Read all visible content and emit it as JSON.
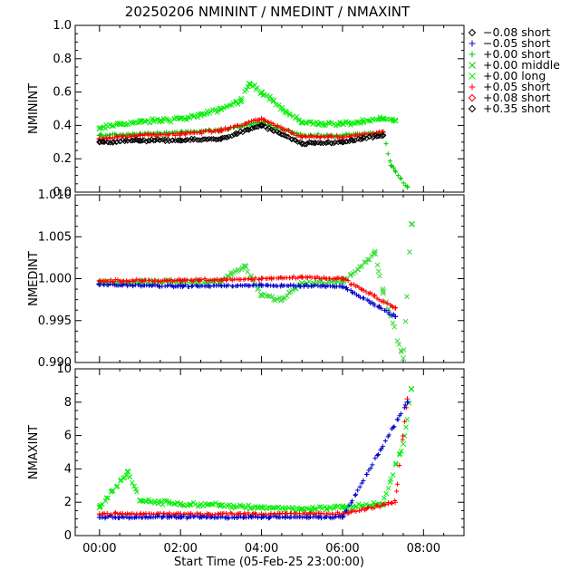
{
  "title": "20250206 NMININT / NMEDINT / NMAXINT",
  "xlabel": "Start Time (05-Feb-25 23:00:00)",
  "x_ticks": [
    "00:00",
    "02:00",
    "04:00",
    "06:00",
    "08:00"
  ],
  "legend": [
    {
      "label": "−0.08 short",
      "symbol": "diamond",
      "color": "#000000",
      "text_color": "#0000cc"
    },
    {
      "label": "−0.05 short",
      "symbol": "plus",
      "color": "#0000cc",
      "text_color": "#0000cc"
    },
    {
      "label": "+0.00 short",
      "symbol": "plus",
      "color": "#00cc00",
      "text_color": "#00cc00"
    },
    {
      "label": "+0.00 middle",
      "symbol": "cross",
      "color": "#00cc00",
      "text_color": "#00cc00"
    },
    {
      "label": "+0.00 long",
      "symbol": "cross",
      "color": "#00ee00",
      "text_color": "#00ee00"
    },
    {
      "label": "+0.05 short",
      "symbol": "plus",
      "color": "#ff0000",
      "text_color": "#ff0000"
    },
    {
      "label": "+0.08 short",
      "symbol": "diamond",
      "color": "#ff0000",
      "text_color": "#ff0000"
    },
    {
      "label": "+0.35 short",
      "symbol": "diamond",
      "color": "#000000",
      "text_color": "#000000"
    }
  ],
  "colors": {
    "blue": "#0000cc",
    "green": "#00dd00",
    "red": "#ff0000",
    "black": "#000000"
  },
  "chart_data": [
    {
      "type": "scatter",
      "ylabel": "NMININT",
      "ylim": [
        0.0,
        1.0
      ],
      "y_ticks": [
        "0.0",
        "0.2",
        "0.4",
        "0.6",
        "0.8",
        "1.0"
      ],
      "x_range_hours": [
        -0.6,
        9.0
      ],
      "series": [
        {
          "name": "+0.00 long",
          "values": [
            [
              0.0,
              0.38
            ],
            [
              0.5,
              0.41
            ],
            [
              1.0,
              0.42
            ],
            [
              1.5,
              0.43
            ],
            [
              2.0,
              0.44
            ],
            [
              2.5,
              0.46
            ],
            [
              3.0,
              0.5
            ],
            [
              3.5,
              0.55
            ],
            [
              3.7,
              0.65
            ],
            [
              4.0,
              0.6
            ],
            [
              4.3,
              0.55
            ],
            [
              4.6,
              0.48
            ],
            [
              5.0,
              0.42
            ],
            [
              5.5,
              0.41
            ],
            [
              6.0,
              0.41
            ],
            [
              6.5,
              0.42
            ],
            [
              7.0,
              0.44
            ],
            [
              7.3,
              0.43
            ]
          ]
        },
        {
          "name": "+0.00 short",
          "values": [
            [
              0.0,
              0.34
            ],
            [
              1.0,
              0.35
            ],
            [
              2.0,
              0.36
            ],
            [
              3.0,
              0.37
            ],
            [
              4.0,
              0.42
            ],
            [
              5.0,
              0.34
            ],
            [
              6.0,
              0.34
            ],
            [
              7.0,
              0.36
            ],
            [
              7.2,
              0.16
            ],
            [
              7.6,
              0.03
            ]
          ]
        },
        {
          "name": "+0.05 short",
          "values": [
            [
              0.0,
              0.32
            ],
            [
              1.0,
              0.34
            ],
            [
              2.0,
              0.35
            ],
            [
              3.0,
              0.37
            ],
            [
              4.0,
              0.44
            ],
            [
              5.0,
              0.33
            ],
            [
              6.0,
              0.33
            ],
            [
              7.0,
              0.36
            ]
          ]
        },
        {
          "name": "+0.35 short",
          "values": [
            [
              0.0,
              0.3
            ],
            [
              1.0,
              0.31
            ],
            [
              2.0,
              0.31
            ],
            [
              3.0,
              0.32
            ],
            [
              4.0,
              0.4
            ],
            [
              5.0,
              0.29
            ],
            [
              6.0,
              0.3
            ],
            [
              7.0,
              0.34
            ]
          ]
        }
      ]
    },
    {
      "type": "scatter",
      "ylabel": "NMEDINT",
      "ylim": [
        0.99,
        1.01
      ],
      "y_ticks": [
        "0.990",
        "0.995",
        "1.000",
        "1.005",
        "1.010"
      ],
      "x_range_hours": [
        -0.6,
        9.0
      ],
      "series": [
        {
          "name": "+0.00 middle",
          "values": [
            [
              0.0,
              0.9995
            ],
            [
              1.0,
              0.9996
            ],
            [
              2.0,
              0.9996
            ],
            [
              3.0,
              0.9997
            ],
            [
              3.6,
              1.0015
            ],
            [
              4.0,
              0.998
            ],
            [
              4.5,
              0.9975
            ],
            [
              5.0,
              0.9995
            ],
            [
              6.0,
              0.9996
            ],
            [
              6.8,
              1.003
            ],
            [
              7.0,
              0.9985
            ],
            [
              7.5,
              0.9905
            ],
            [
              7.7,
              1.0065
            ]
          ]
        },
        {
          "name": "−0.05 short",
          "values": [
            [
              0.0,
              0.9993
            ],
            [
              2.0,
              0.9991
            ],
            [
              4.0,
              0.9992
            ],
            [
              6.0,
              0.9991
            ],
            [
              7.3,
              0.9955
            ]
          ]
        },
        {
          "name": "+0.05 short",
          "values": [
            [
              0.0,
              0.9997
            ],
            [
              2.0,
              0.9998
            ],
            [
              4.0,
              1.0
            ],
            [
              5.0,
              1.0002
            ],
            [
              6.0,
              1.0
            ],
            [
              7.3,
              0.9965
            ]
          ]
        }
      ]
    },
    {
      "type": "scatter",
      "ylabel": "NMAXINT",
      "ylim": [
        0,
        10
      ],
      "y_ticks": [
        "0",
        "2",
        "4",
        "6",
        "8",
        "10"
      ],
      "x_range_hours": [
        -0.6,
        9.0
      ],
      "series": [
        {
          "name": "+0.00 long",
          "values": [
            [
              0.0,
              1.7
            ],
            [
              0.7,
              3.8
            ],
            [
              1.0,
              2.1
            ],
            [
              2.0,
              1.9
            ],
            [
              3.0,
              1.8
            ],
            [
              4.0,
              1.7
            ],
            [
              5.0,
              1.6
            ],
            [
              6.0,
              1.7
            ],
            [
              7.0,
              1.9
            ],
            [
              7.5,
              5.5
            ],
            [
              7.7,
              8.8
            ]
          ]
        },
        {
          "name": "+0.05 short",
          "values": [
            [
              0.0,
              1.3
            ],
            [
              2.0,
              1.3
            ],
            [
              4.0,
              1.3
            ],
            [
              6.0,
              1.3
            ],
            [
              7.3,
              2.0
            ],
            [
              7.6,
              8.2
            ]
          ]
        },
        {
          "name": "−0.05 short",
          "values": [
            [
              0.0,
              1.1
            ],
            [
              2.0,
              1.1
            ],
            [
              4.0,
              1.1
            ],
            [
              6.0,
              1.1
            ],
            [
              7.6,
              8.0
            ]
          ]
        }
      ]
    }
  ]
}
